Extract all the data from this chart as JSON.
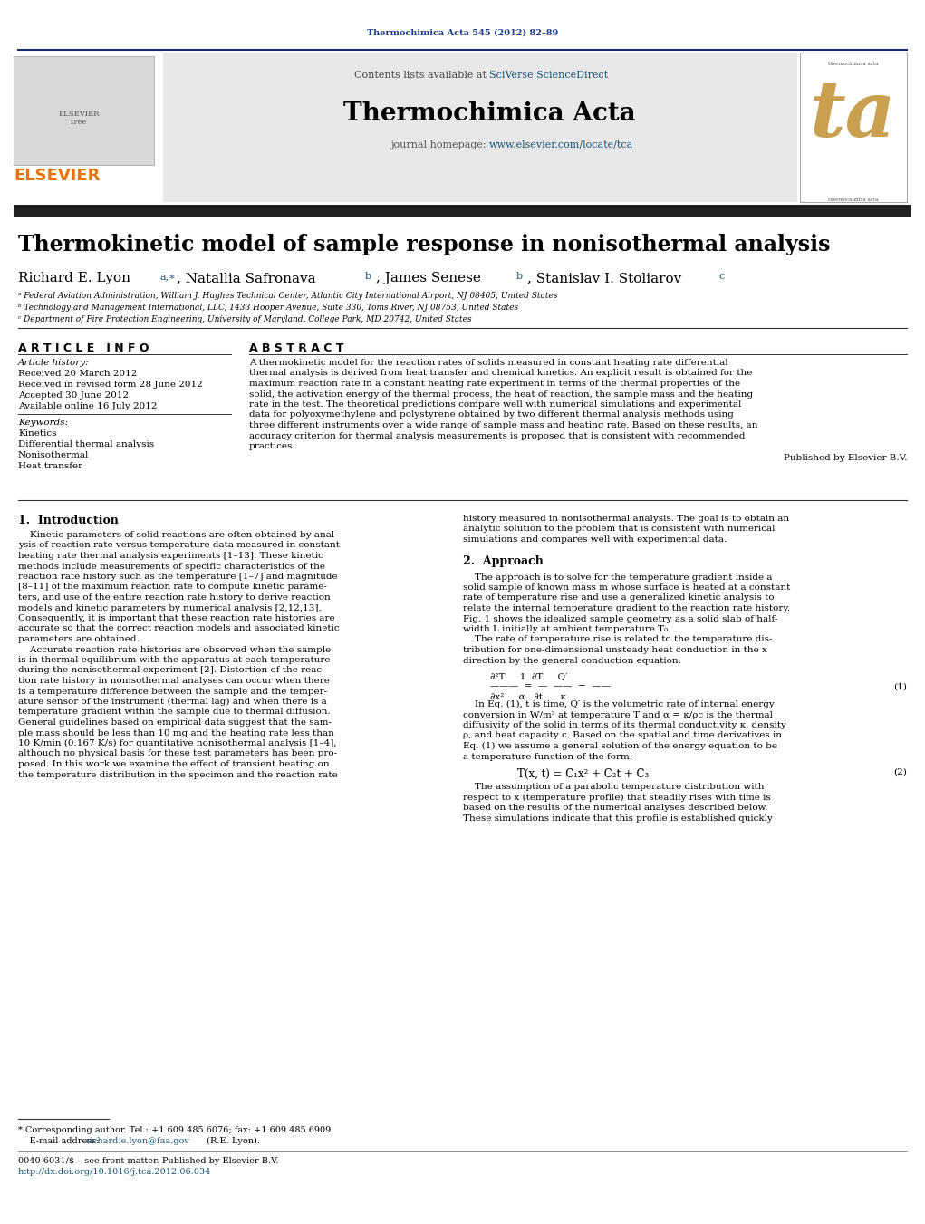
{
  "page_width": 10.21,
  "page_height": 13.51,
  "bg_color": "#ffffff",
  "header_journal_ref": "Thermochimica Acta 545 (2012) 82–89",
  "header_journal_ref_color": "#1a3a8c",
  "journal_title": "Thermochimica Acta",
  "article_title": "Thermokinetic model of sample response in nonisothermal analysis",
  "author_line": "Richard E. Lyon",
  "author_sup1": "a,∗",
  "author_mid": ", Natallia Safronava",
  "author_sup2": "b",
  "author_mid2": ", James Senese",
  "author_sup3": "b",
  "author_mid3": ", Stanislav I. Stoliarov",
  "author_sup4": "c",
  "affil_a": "ᵃ Federal Aviation Administration, William J. Hughes Technical Center, Atlantic City International Airport, NJ 08405, United States",
  "affil_b": "ᵇ Technology and Management International, LLC, 1433 Hooper Avenue, Suite 330, Toms River, NJ 08753, United States",
  "affil_c": "ᶜ Department of Fire Protection Engineering, University of Maryland, College Park, MD 20742, United States",
  "article_info_header": "A R T I C L E   I N F O",
  "abstract_header": "A B S T R A C T",
  "article_history_label": "Article history:",
  "received": "Received 20 March 2012",
  "received_revised": "Received in revised form 28 June 2012",
  "accepted": "Accepted 30 June 2012",
  "available_online": "Available online 16 July 2012",
  "keywords_label": "Keywords:",
  "keyword1": "Kinetics",
  "keyword2": "Differential thermal analysis",
  "keyword3": "Nonisothermal",
  "keyword4": "Heat transfer",
  "published_by": "Published by Elsevier B.V.",
  "section1_title": "1.  Introduction",
  "section2_title": "2.  Approach",
  "footer_star": "* Corresponding author. Tel.: +1 609 485 6076; fax: +1 609 485 6909.",
  "footer_email_label": "    E-mail address: ",
  "footer_email": "richard.e.lyon@faa.gov",
  "footer_email_suffix": " (R.E. Lyon).",
  "footer_issn": "0040-6031/$ – see front matter. Published by Elsevier B.V.",
  "footer_doi": "http://dx.doi.org/10.1016/j.tca.2012.06.034",
  "elsevier_color": "#e8750a",
  "link_color": "#1a5276",
  "header_bar_color": "#1a2a6c",
  "dark_bar_color": "#222222",
  "gray_header_bg": "#e8e8e8",
  "abstract_lines": [
    "A thermokinetic model for the reaction rates of solids measured in constant heating rate differential",
    "thermal analysis is derived from heat transfer and chemical kinetics. An explicit result is obtained for the",
    "maximum reaction rate in a constant heating rate experiment in terms of the thermal properties of the",
    "solid, the activation energy of the thermal process, the heat of reaction, the sample mass and the heating",
    "rate in the test. The theoretical predictions compare well with numerical simulations and experimental",
    "data for polyoxymethylene and polystyrene obtained by two different thermal analysis methods using",
    "three different instruments over a wide range of sample mass and heating rate. Based on these results, an",
    "accuracy criterion for thermal analysis measurements is proposed that is consistent with recommended",
    "practices."
  ],
  "body_left_lines": [
    "    Kinetic parameters of solid reactions are often obtained by anal-",
    "ysis of reaction rate versus temperature data measured in constant",
    "heating rate thermal analysis experiments [1–13]. These kinetic",
    "methods include measurements of specific characteristics of the",
    "reaction rate history such as the temperature [1–7] and magnitude",
    "[8–11] of the maximum reaction rate to compute kinetic parame-",
    "ters, and use of the entire reaction rate history to derive reaction",
    "models and kinetic parameters by numerical analysis [2,12,13].",
    "Consequently, it is important that these reaction rate histories are",
    "accurate so that the correct reaction models and associated kinetic",
    "parameters are obtained.",
    "    Accurate reaction rate histories are observed when the sample",
    "is in thermal equilibrium with the apparatus at each temperature",
    "during the nonisothermal experiment [2]. Distortion of the reac-",
    "tion rate history in nonisothermal analyses can occur when there",
    "is a temperature difference between the sample and the temper-",
    "ature sensor of the instrument (thermal lag) and when there is a",
    "temperature gradient within the sample due to thermal diffusion.",
    "General guidelines based on empirical data suggest that the sam-",
    "ple mass should be less than 10 mg and the heating rate less than",
    "10 K/min (0.167 K/s) for quantitative nonisothermal analysis [1–4],",
    "although no physical basis for these test parameters has been pro-",
    "posed. In this work we examine the effect of transient heating on",
    "the temperature distribution in the specimen and the reaction rate"
  ],
  "body_right_intro": [
    "history measured in nonisothermal analysis. The goal is to obtain an",
    "analytic solution to the problem that is consistent with numerical",
    "simulations and compares well with experimental data."
  ],
  "body_right_approach": [
    "    The approach is to solve for the temperature gradient inside a",
    "solid sample of known mass m whose surface is heated at a constant",
    "rate of temperature rise and use a generalized kinetic analysis to",
    "relate the internal temperature gradient to the reaction rate history.",
    "Fig. 1 shows the idealized sample geometry as a solid slab of half-",
    "width L initially at ambient temperature T₀.",
    "    The rate of temperature rise is related to the temperature dis-",
    "tribution for one-dimensional unsteady heat conduction in the x",
    "direction by the general conduction equation:"
  ],
  "eq1_top": "∂²T     1  ∂T     Q′",
  "eq1_mid": "———  =  —  ——  −  ——",
  "eq1_bot": "∂x²     α   ∂t      κ",
  "eq1_num": "(1)",
  "body_right_after_eq1": [
    "    In Eq. (1), t is time, Q′ is the volumetric rate of internal energy",
    "conversion in W/m³ at temperature T and α = κ/ρc is the thermal",
    "diffusivity of the solid in terms of its thermal conductivity κ, density",
    "ρ, and heat capacity c. Based on the spatial and time derivatives in",
    "Eq. (1) we assume a general solution of the energy equation to be",
    "a temperature function of the form:"
  ],
  "eq2_text": "T(x, t) = C₁x² + C₂t + C₃",
  "eq2_num": "(2)",
  "body_right_after_eq2": [
    "    The assumption of a parabolic temperature distribution with",
    "respect to x (temperature profile) that steadily rises with time is",
    "based on the results of the numerical analyses described below.",
    "These simulations indicate that this profile is established quickly"
  ]
}
